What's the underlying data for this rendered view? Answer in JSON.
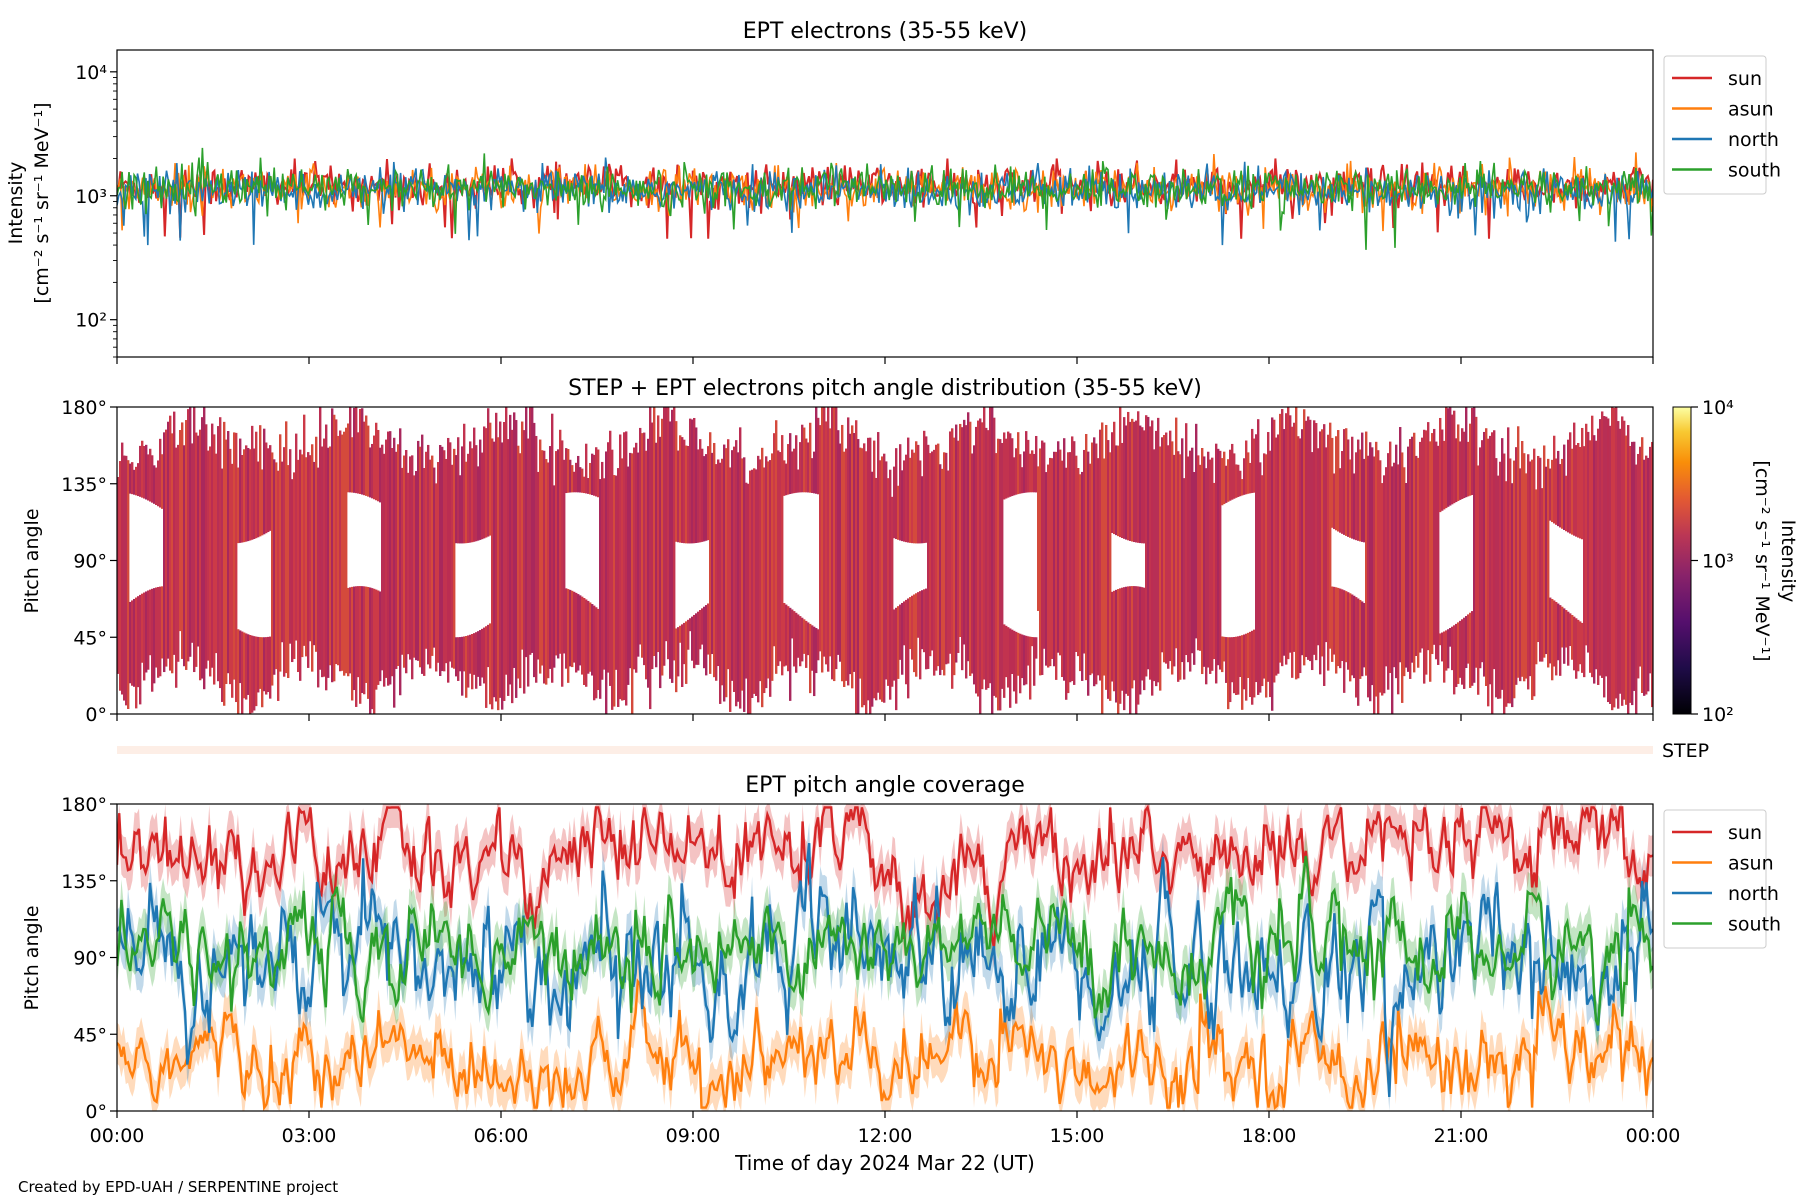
{
  "footer": "Created by EPD-UAH / SERPENTINE project",
  "chart_data": [
    {
      "type": "line",
      "title": "EPT electrons (35-55 keV)",
      "ylabel": "Intensity",
      "ylabel_unit": "[cm⁻² s⁻¹ sr⁻¹ MeV⁻¹]",
      "yscale": "log",
      "ylim": [
        50,
        15000
      ],
      "y_ticks": [
        100,
        1000,
        10000
      ],
      "y_ticklabels": [
        "10²",
        "10³",
        "10⁴"
      ],
      "xlim": [
        0,
        24
      ],
      "legend_position": "outside-right-top",
      "series": [
        {
          "name": "sun",
          "color": "#d62728",
          "typical": 1200,
          "min": 450,
          "max": 2000
        },
        {
          "name": "asun",
          "color": "#ff7f0e",
          "typical": 1150,
          "min": 250,
          "max": 2300
        },
        {
          "name": "north",
          "color": "#1f77b4",
          "typical": 1100,
          "min": 400,
          "max": 2100
        },
        {
          "name": "south",
          "color": "#2ca02c",
          "typical": 1150,
          "min": 320,
          "max": 2700
        }
      ]
    },
    {
      "type": "heatmap",
      "title": "STEP + EPT electrons pitch angle distribution (35-55 keV)",
      "ylabel": "Pitch angle",
      "ylim": [
        0,
        180
      ],
      "y_ticks": [
        0,
        45,
        90,
        135,
        180
      ],
      "y_ticklabels": [
        "0°",
        "45°",
        "90°",
        "135°",
        "180°"
      ],
      "xlim": [
        0,
        24
      ],
      "colorbar": {
        "label": "Intensity",
        "unit": "[cm⁻² s⁻¹ sr⁻¹ MeV⁻¹]",
        "scale": "log",
        "range": [
          100,
          10000
        ],
        "ticklabels": [
          "10²",
          "10³",
          "10⁴"
        ],
        "colormap": "inferno"
      },
      "typical_intensity": 1200
    },
    {
      "type": "bar",
      "label": "STEP",
      "color": "#fdeee6"
    },
    {
      "type": "line",
      "title": "EPT pitch angle coverage",
      "ylabel": "Pitch angle",
      "xlabel": "Time of day 2024 Mar 22 (UT)",
      "ylim": [
        0,
        180
      ],
      "y_ticks": [
        0,
        45,
        90,
        135,
        180
      ],
      "y_ticklabels": [
        "0°",
        "45°",
        "90°",
        "135°",
        "180°"
      ],
      "xlim": [
        0,
        24
      ],
      "x_ticks": [
        0,
        3,
        6,
        9,
        12,
        15,
        18,
        21,
        24
      ],
      "x_ticklabels": [
        "00:00",
        "03:00",
        "06:00",
        "09:00",
        "12:00",
        "15:00",
        "18:00",
        "21:00",
        "00:00"
      ],
      "legend_position": "outside-right-top",
      "series": [
        {
          "name": "sun",
          "color": "#d62728",
          "mean": 150,
          "spread": 18
        },
        {
          "name": "asun",
          "color": "#ff7f0e",
          "mean": 30,
          "spread": 16
        },
        {
          "name": "north",
          "color": "#1f77b4",
          "mean": 85,
          "spread": 25
        },
        {
          "name": "south",
          "color": "#2ca02c",
          "mean": 95,
          "spread": 18
        }
      ]
    }
  ]
}
